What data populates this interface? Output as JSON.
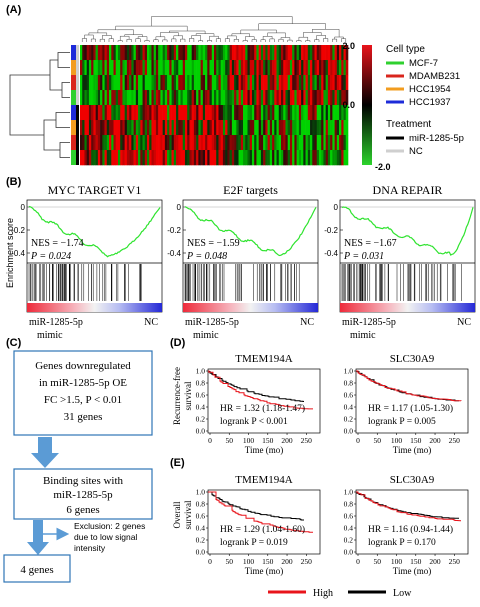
{
  "panel_labels": {
    "a": "(A)",
    "b": "(B)",
    "c": "(C)",
    "d": "(D)",
    "e": "(E)"
  },
  "heatmap": {
    "scale_max": "2.0",
    "scale_mid": "0.0",
    "scale_min": "-2.0",
    "scale_colors": {
      "high": "#e8141b",
      "mid": "#000000",
      "low": "#2cd32c"
    },
    "cell_type_title": "Cell type",
    "cell_types": [
      {
        "label": "MCF-7",
        "color": "#2fd02f"
      },
      {
        "label": "MDAMB231",
        "color": "#d9251c"
      },
      {
        "label": "HCC1954",
        "color": "#f29c1f"
      },
      {
        "label": "HCC1937",
        "color": "#1d2bd9"
      }
    ],
    "treatment_title": "Treatment",
    "treatments": [
      {
        "label": "miR-1285-5p",
        "color": "#000000"
      },
      {
        "label": "NC",
        "color": "#cfcfcf"
      }
    ],
    "row_cell_colors": [
      "#1d2bd9",
      "#f29c1f",
      "#d9251c",
      "#2fd02f",
      "#1d2bd9",
      "#f29c1f",
      "#d9251c",
      "#2fd02f"
    ],
    "row_treatment_colors": [
      "#cfcfcf",
      "#cfcfcf",
      "#cfcfcf",
      "#cfcfcf",
      "#000000",
      "#000000",
      "#000000",
      "#000000"
    ]
  },
  "gsea": {
    "ylabel": "Enrichment score",
    "plots": [
      {
        "title": "MYC TARGET V1",
        "nes": "NES = −1.74",
        "p": "P = 0.024",
        "ticks": [
          "0",
          "-0.2",
          "-0.4"
        ],
        "left": "miR-1285-5p",
        "left2": "mimic",
        "right": "NC"
      },
      {
        "title": "E2F targets",
        "nes": "NES = −1.59",
        "p": "P = 0.048",
        "ticks": [
          "0",
          "-0.2",
          "-0.4"
        ],
        "left": "miR-1285-5p",
        "left2": "mimic",
        "right": "NC"
      },
      {
        "title": "DNA REPAIR",
        "nes": "NES = −1.67",
        "p": "P = 0.031",
        "ticks": [
          "0",
          "-0.2",
          "-0.4"
        ],
        "left": "miR-1285-5p",
        "left2": "mimic",
        "right": "NC"
      }
    ]
  },
  "flow": {
    "box1": [
      "Genes downregulated",
      "in miR-1285-5p OE",
      "FC  >1.5, P < 0.01",
      "31 genes"
    ],
    "box2": [
      "Binding sites with",
      "miR-1285-5p",
      "6 genes"
    ],
    "exclusion": [
      "Exclusion: 2 genes",
      "due to low signal",
      "intensity"
    ],
    "box3": "4 genes"
  },
  "survival": {
    "d_ylabel": [
      "Recurrence-free",
      "survival"
    ],
    "e_ylabel": [
      "Overall",
      "survival"
    ],
    "xlabel": "Time (mo)",
    "yticks": [
      "1.0",
      "0.8",
      "0.6",
      "0.4",
      "0.2",
      "0.0"
    ],
    "xticks_left": [
      "0",
      "50",
      "100",
      "150",
      "200",
      "250"
    ],
    "xticks_right": [
      "0",
      "50",
      "100",
      "150",
      "200",
      "250"
    ],
    "plots": [
      {
        "title": "TMEM194A",
        "hr": "HR = 1.32 (1.18-1.47)",
        "logrank": "logrank P < 0.001"
      },
      {
        "title": "SLC30A9",
        "hr": "HR = 1.17 (1.05-1.30)",
        "logrank": "logrank P = 0.005"
      },
      {
        "title": "TMEM194A",
        "hr": "HR = 1.29 (1.04-1.60)",
        "logrank": "logrank P = 0.019"
      },
      {
        "title": "SLC30A9",
        "hr": "HR = 1.16 (0.94-1.44)",
        "logrank": "logrank P = 0.170"
      }
    ],
    "legend": [
      {
        "label": "High",
        "color": "#e8141b"
      },
      {
        "label": "Low",
        "color": "#000000"
      }
    ]
  }
}
